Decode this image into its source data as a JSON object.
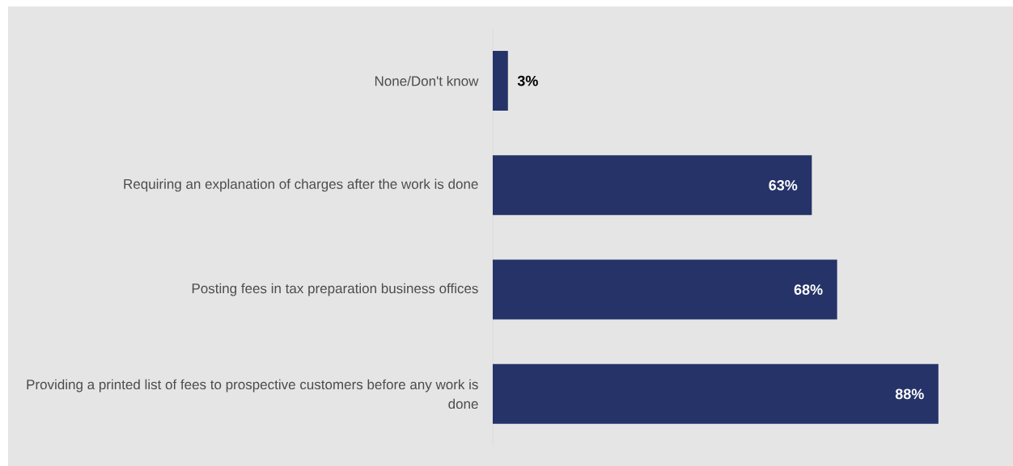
{
  "chart_data": {
    "type": "bar",
    "orientation": "horizontal",
    "categories": [
      "None/Don't know",
      "Requiring an explanation of charges after the work is done",
      "Posting fees in tax preparation business offices",
      "Providing a printed list of fees to prospective customers before any work is done"
    ],
    "values": [
      3,
      63,
      68,
      88
    ],
    "color": "#253368",
    "value_labels": [
      "3%",
      "63%",
      "68%",
      "88%"
    ]
  }
}
